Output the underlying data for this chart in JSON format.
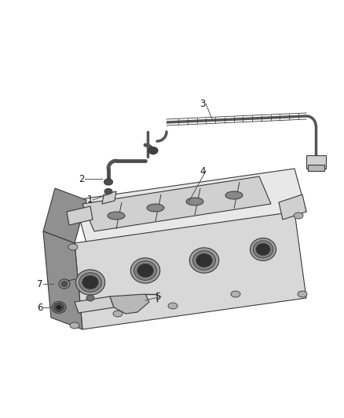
{
  "background_color": "#ffffff",
  "line_color": "#3a3a3a",
  "label_color": "#1a1a1a",
  "label_fontsize": 8.5,
  "callout_line_color": "#555555",
  "callout_lw": 0.7,
  "part_lw": 0.8,
  "hose_lw": 2.5,
  "hose_color": "#555555",
  "fill_light": "#e8e8e8",
  "fill_mid": "#d0d0d0",
  "fill_dark": "#b8b8b8",
  "fill_darker": "#909090",
  "fill_darkest": "#606060"
}
